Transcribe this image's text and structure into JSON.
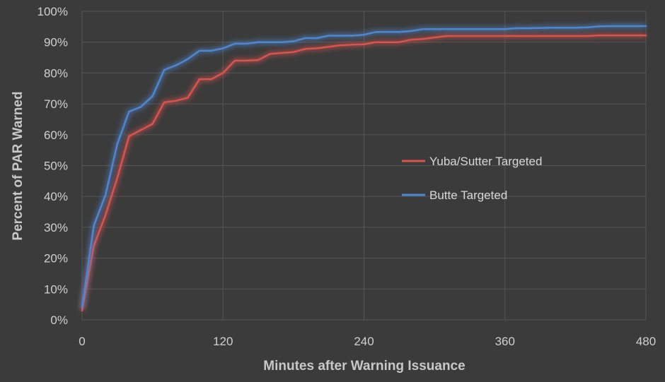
{
  "chart_data": {
    "type": "line",
    "title": "",
    "xlabel": "Minutes after Warning Issuance",
    "ylabel": "Percent of PAR Warned",
    "xlim": [
      0,
      480
    ],
    "ylim": [
      0,
      100
    ],
    "x_ticks": [
      0,
      120,
      240,
      360,
      480
    ],
    "x_tick_labels": [
      "0",
      "120",
      "240",
      "360",
      "480"
    ],
    "y_ticks": [
      0,
      10,
      20,
      30,
      40,
      50,
      60,
      70,
      80,
      90,
      100
    ],
    "y_tick_labels": [
      "0%",
      "10%",
      "20%",
      "30%",
      "40%",
      "50%",
      "60%",
      "70%",
      "80%",
      "90%",
      "100%"
    ],
    "grid": true,
    "legend_position": "center-right",
    "x": [
      0,
      10,
      20,
      30,
      40,
      50,
      60,
      70,
      80,
      90,
      100,
      110,
      120,
      130,
      140,
      150,
      160,
      170,
      180,
      190,
      200,
      210,
      220,
      230,
      240,
      250,
      260,
      270,
      280,
      290,
      300,
      310,
      320,
      330,
      340,
      350,
      360,
      370,
      380,
      390,
      400,
      410,
      420,
      430,
      440,
      450,
      460,
      470,
      480
    ],
    "series": [
      {
        "name": "Yuba/Sutter Targeted",
        "color": "#d9534f",
        "values": [
          3,
          24,
          34,
          46,
          59.5,
          61.5,
          63.5,
          70.5,
          71,
          72,
          78,
          78,
          80,
          84,
          84,
          84.2,
          86.2,
          86.5,
          86.8,
          87.8,
          88,
          88.5,
          89,
          89.2,
          89.3,
          90,
          90,
          90,
          90.8,
          91,
          91.5,
          92,
          92,
          92,
          92,
          92,
          92,
          92,
          92,
          92,
          92,
          92,
          92,
          92,
          92.2,
          92.2,
          92.2,
          92.2,
          92.2
        ]
      },
      {
        "name": "Butte Targeted",
        "color": "#4f86d0",
        "values": [
          4,
          30.5,
          40.5,
          57,
          67.5,
          69,
          72.5,
          81,
          82.5,
          84.5,
          87.2,
          87.2,
          88,
          89.5,
          89.5,
          90,
          90,
          90,
          90.3,
          91.3,
          91.3,
          92.1,
          92.1,
          92.1,
          92.4,
          93.3,
          93.3,
          93.3,
          93.6,
          94.2,
          94.2,
          94.2,
          94.2,
          94.2,
          94.2,
          94.2,
          94.2,
          94.5,
          94.5,
          94.6,
          94.7,
          94.7,
          94.7,
          94.8,
          95.1,
          95.2,
          95.2,
          95.2,
          95.2
        ]
      }
    ]
  }
}
